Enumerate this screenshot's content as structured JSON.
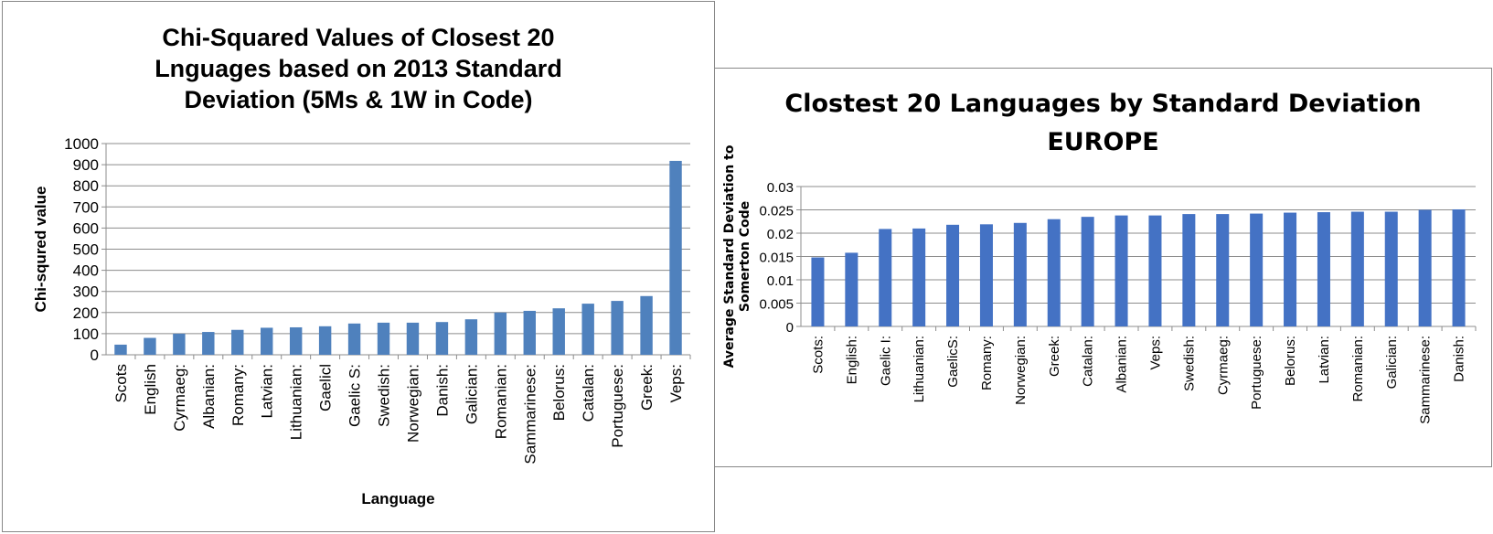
{
  "chart_data": [
    {
      "type": "bar",
      "title": "Chi-Squared Values of Closest 20 Lnguages based on 2013 Standard Deviation (5Ms & 1W in Code)",
      "xlabel": "Language",
      "ylabel": "Chi-squred value",
      "ylim": [
        0,
        1000
      ],
      "yticks": [
        "1000",
        "900",
        "800",
        "700",
        "600",
        "500",
        "400",
        "300",
        "200",
        "100",
        "0"
      ],
      "grid": true,
      "color": "#4F81BD",
      "categories": [
        "Scots",
        "English",
        "Cyrmaeg:",
        "Albanian:",
        "Romany:",
        "Latvian:",
        "Lithuanian:",
        "Gaelicl",
        "Gaelic S:",
        "Swedish:",
        "Norwegian:",
        "Danish:",
        "Galician:",
        "Romanian:",
        "Sammarinese:",
        "Belorus:",
        "Catalan:",
        "Portuguese:",
        "Greek:",
        "Veps:"
      ],
      "values": [
        48,
        80,
        100,
        108,
        118,
        128,
        130,
        135,
        148,
        152,
        152,
        155,
        168,
        200,
        208,
        220,
        242,
        255,
        278,
        918
      ]
    },
    {
      "type": "bar",
      "title": "Clostest 20 Languages by Standard Deviation EUROPE",
      "xlabel": "",
      "ylabel": "Average Standard Deviation to Somerton Code",
      "ylim": [
        0,
        0.03
      ],
      "yticks": [
        "0.03",
        "0.025",
        "0.02",
        "0.015",
        "0.01",
        "0.005",
        "0"
      ],
      "grid": true,
      "color": "#4472C4",
      "categories": [
        "Scots:",
        "English:",
        "Gaelic I:",
        "Lithuanian:",
        "GaelicS:",
        "Romany:",
        "Norwegian:",
        "Greek:",
        "Catalan:",
        "Albanian:",
        "Veps:",
        "Swedish:",
        "Cyrmaeg:",
        "Portuguese:",
        "Belorus:",
        "Latvian:",
        "Romanian:",
        "Galician:",
        "Sammarinese:",
        "Danish:"
      ],
      "values": [
        0.0148,
        0.0158,
        0.0209,
        0.021,
        0.0218,
        0.0219,
        0.0222,
        0.023,
        0.0235,
        0.0238,
        0.0238,
        0.0241,
        0.0241,
        0.0242,
        0.0244,
        0.0245,
        0.0246,
        0.0246,
        0.025,
        0.0251
      ]
    }
  ]
}
